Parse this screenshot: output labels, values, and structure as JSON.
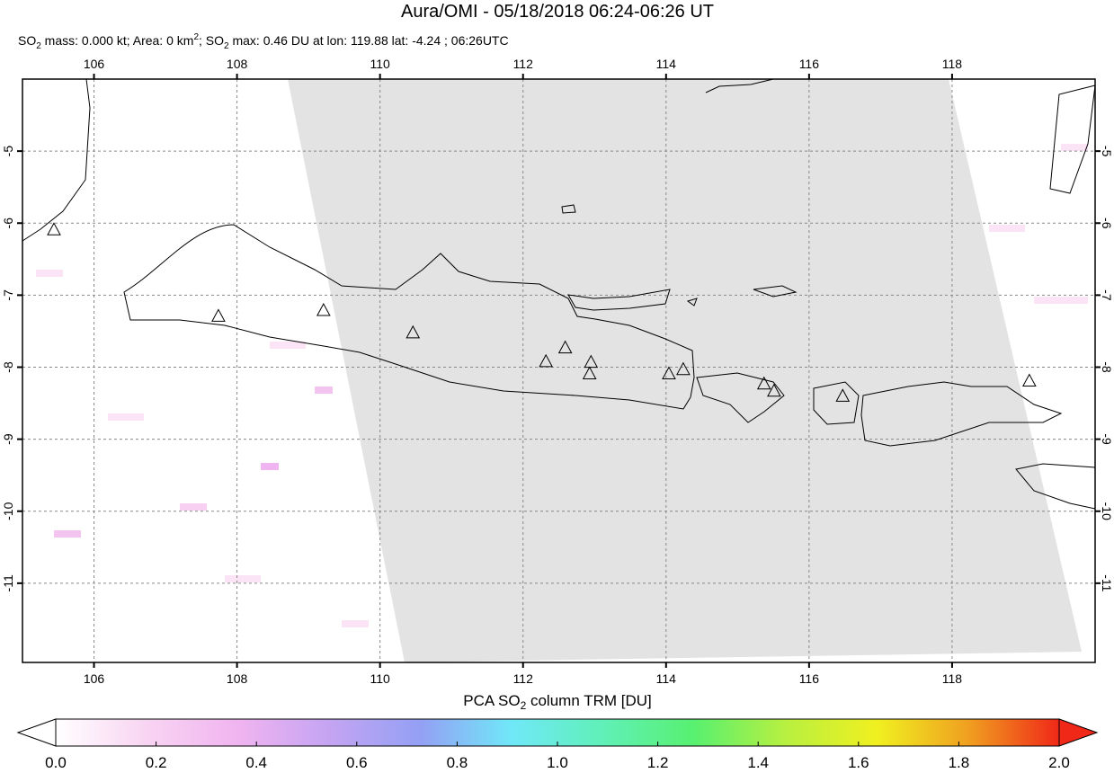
{
  "header": {
    "title": "Aura/OMI - 05/18/2018 06:24-06:26 UT",
    "subtitle_parts": [
      "SO",
      "2",
      " mass: 0.000 kt; Area: 0 km",
      "2",
      "; SO",
      "2",
      " max: 0.46 DU at lon: 119.88 lat: -4.24 ; 06:26UTC"
    ]
  },
  "map": {
    "lonlim": [
      105,
      120
    ],
    "latlim": [
      -12.1,
      -4
    ],
    "lonticks": [
      106,
      108,
      110,
      112,
      114,
      116,
      118
    ],
    "latticks": [
      -5,
      -6,
      -7,
      -8,
      -9,
      -10,
      -11
    ],
    "grid": true,
    "volcanoes": [
      {
        "lon": 105.44,
        "lat": -6.1
      },
      {
        "lon": 107.74,
        "lat": -7.3
      },
      {
        "lon": 109.21,
        "lat": -7.22
      },
      {
        "lon": 110.46,
        "lat": -7.53
      },
      {
        "lon": 112.32,
        "lat": -7.93
      },
      {
        "lon": 112.59,
        "lat": -7.74
      },
      {
        "lon": 112.95,
        "lat": -7.94
      },
      {
        "lon": 112.93,
        "lat": -8.1
      },
      {
        "lon": 114.04,
        "lat": -8.1
      },
      {
        "lon": 114.24,
        "lat": -8.04
      },
      {
        "lon": 115.37,
        "lat": -8.24
      },
      {
        "lon": 115.51,
        "lat": -8.34
      },
      {
        "lon": 116.47,
        "lat": -8.41
      },
      {
        "lon": 119.08,
        "lat": -8.2
      }
    ]
  },
  "colorbar": {
    "label_parts": [
      "PCA SO",
      "2",
      " column TRM [DU]"
    ],
    "lim": [
      0,
      2
    ],
    "ticks": [
      {
        "value": 0,
        "label": "0.0"
      },
      {
        "value": 0.2,
        "label": "0.2"
      },
      {
        "value": 0.4,
        "label": "0.4"
      },
      {
        "value": 0.6,
        "label": "0.6"
      },
      {
        "value": 0.8,
        "label": "0.8"
      },
      {
        "value": 1,
        "label": "1.0"
      },
      {
        "value": 1.2,
        "label": "1.2"
      },
      {
        "value": 1.4,
        "label": "1.4"
      },
      {
        "value": 1.6,
        "label": "1.6"
      },
      {
        "value": 1.8,
        "label": "1.8"
      },
      {
        "value": 2,
        "label": "2.0"
      }
    ],
    "colors": [
      "#ffffff",
      "#f8d4f2",
      "#f0b4f0",
      "#c4a4f2",
      "#94a0f4",
      "#70e8f8",
      "#60f0b8",
      "#58f070",
      "#b8f040",
      "#f0f020",
      "#f0a020",
      "#f02818"
    ]
  }
}
